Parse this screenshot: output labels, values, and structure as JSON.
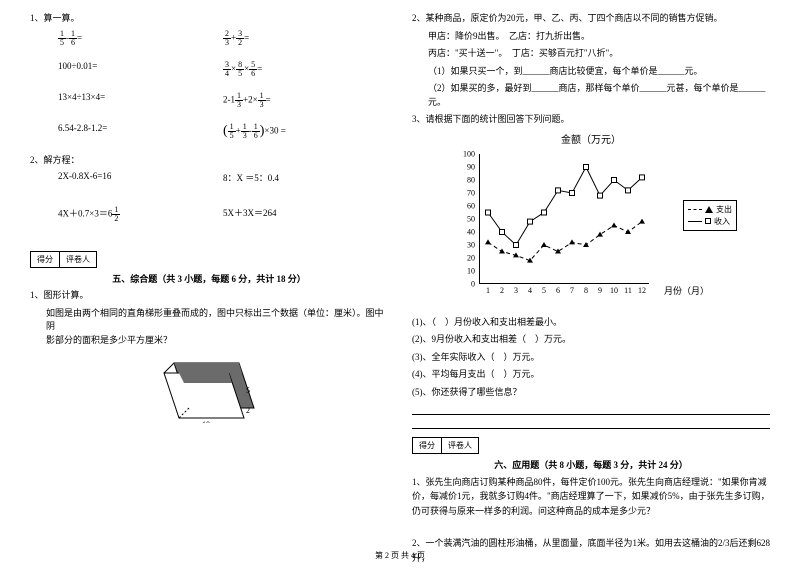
{
  "left": {
    "q1_title": "1、算一算。",
    "row1a": {
      "a_n": "1",
      "a_d": "5",
      "op": "-",
      "b_n": "1",
      "b_d": "6",
      "eq": "="
    },
    "row1b": {
      "a_n": "2",
      "a_d": "3",
      "op": "+",
      "b_n": "3",
      "b_d": "2",
      "eq": "="
    },
    "row2a": "100÷0.01=",
    "row2b": {
      "a_n": "3",
      "a_d": "4",
      "op1": "×",
      "b_n": "8",
      "b_d": "5",
      "op2": "×",
      "c_n": "5",
      "c_d": "6",
      "eq": "="
    },
    "row3a": "13×4÷13×4=",
    "row3b": {
      "pre": "2-1",
      "a_n": "1",
      "a_d": "3",
      "op": "+2×",
      "b_n": "1",
      "b_d": "3",
      "eq": "="
    },
    "row4a": "6.54-2.8-1.2=",
    "row4b": {
      "lp": "(",
      "a_n": "1",
      "a_d": "5",
      "op1": "+",
      "b_n": "1",
      "b_d": "3",
      "op2": "-",
      "c_n": "1",
      "c_d": "6",
      "rp": ")",
      "post": "×30 ="
    },
    "q2_title": "2、解方程：",
    "eq1a": "2X-0.8X-6=16",
    "eq1b": "8：X ＝5：0.4",
    "eq2a_pre": "4X＋0.7×3＝6",
    "eq2a_n": "1",
    "eq2a_d": "2",
    "eq2b": "5X＋3X＝264",
    "score_l": "得分",
    "score_r": "评卷人",
    "section5": "五、综合题（共 3 小题，每题 6 分，共计 18 分）",
    "fig_title": "1、图形计算。",
    "fig_text": "如图是由两个相同的直角梯形重叠而成的，图中只标出三个数据（单位：厘米）。图中阴\n影部分的面积是多少平方厘米？",
    "trap": {
      "w": "10",
      "h": "5",
      "off": "2"
    }
  },
  "right": {
    "q2_lines": [
      "2、某种商品，原定价为20元，甲、乙、丙、丁四个商店以不同的销售方促销。",
      "甲店：降价9出售。　乙店：打九折出售。",
      "丙店：\"买十送一\"。　丁店：买够百元打\"八折\"。",
      "（1）如果只买一个，到______商店比较便宜，每个单价是______元。",
      "（2）如果买的多，最好到______商店，那样每个单价______元甚，每个单价是______元。"
    ],
    "q3_title": "3、请根据下面的统计图回答下列问题。",
    "chart": {
      "title": "金额（万元）",
      "ymin": 0,
      "ymax": 100,
      "ystep": 10,
      "xlabels": [
        "1",
        "2",
        "3",
        "4",
        "5",
        "6",
        "7",
        "8",
        "9",
        "10",
        "11",
        "12"
      ],
      "xlabel": "月份（月）",
      "legend_out": "支出",
      "legend_in": "收入",
      "series_out": {
        "values": [
          32,
          25,
          22,
          18,
          30,
          25,
          32,
          30,
          38,
          45,
          40,
          48
        ],
        "color": "#000000",
        "dash": "4,3",
        "marker": "triangle"
      },
      "series_in": {
        "values": [
          55,
          40,
          30,
          48,
          55,
          72,
          70,
          90,
          68,
          80,
          72,
          82
        ],
        "color": "#000000",
        "dash": "none",
        "marker": "square"
      },
      "bg": "#ffffff"
    },
    "sub": [
      "(1)、（　）月份收入和支出相差最小。",
      "(2)、9月份收入和支出相差（　）万元。",
      "(3)、全年实际收入（　）万元。",
      "(4)、平均每月支出（　）万元。",
      "(5)、你还获得了哪些信息？"
    ],
    "score_l": "得分",
    "score_r": "评卷人",
    "section6": "六、应用题（共 8 小题，每题 3 分，共计 24 分）",
    "app1": "1、张先生向商店订购某种商品80件，每件定价100元。张先生向商店经理说：\"如果你肯减价，每减价1元，我就多订购4件。\"商店经理算了一下，如果减价5%，由于张先生多订购，仍可获得与原来一样多的利润。问这种商品的成本是多少元？",
    "app2": "2、一个装满汽油的圆柱形油桶，从里面量，底面半径为1米。如用去这桶油的2/3后还剩628升，"
  },
  "footer": "第 2 页 共 4 页"
}
